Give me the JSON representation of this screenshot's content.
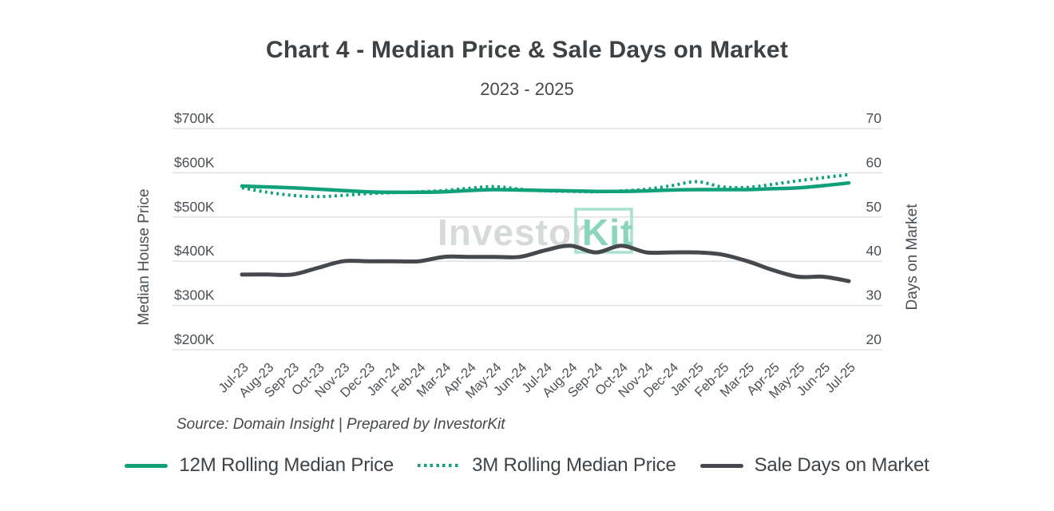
{
  "watermark": {
    "part1": "Investor",
    "part2": "Kit"
  },
  "source": {
    "text": "Source: Domain Insight | Prepared by InvestorKit"
  },
  "colors": {
    "accent_teal": "#10a17c",
    "dark_gray": "#45484c",
    "grid": "#dbdee0",
    "watermark_gray": "#d7dadb",
    "watermark_teal": "#8bd4be"
  },
  "chart_data": {
    "type": "line",
    "title": "Chart 4 - Median Price & Sale Days on Market",
    "subtitle": "2023 - 2025",
    "grid": true,
    "legend_position": "bottom",
    "categories": [
      "Jul-23",
      "Aug-23",
      "Sep-23",
      "Oct-23",
      "Nov-23",
      "Dec-23",
      "Jan-24",
      "Feb-24",
      "Mar-24",
      "Apr-24",
      "May-24",
      "Jun-24",
      "Jul-24",
      "Aug-24",
      "Sep-24",
      "Oct-24",
      "Nov-24",
      "Dec-24",
      "Jan-25",
      "Feb-25",
      "Mar-25",
      "Apr-25",
      "May-25",
      "Jun-25",
      "Jul-25"
    ],
    "left_axis": {
      "label": "Median House Price",
      "ticks": [
        "$700K",
        "$600K",
        "$500K",
        "$400K",
        "$300K",
        "$200K"
      ],
      "min": 200,
      "max": 700,
      "units": "$K"
    },
    "right_axis": {
      "label": "Days on Market",
      "ticks": [
        "70",
        "60",
        "50",
        "40",
        "30",
        "20"
      ],
      "min": 20,
      "max": 70
    },
    "series": [
      {
        "name": "12M Rolling Median Price",
        "axis": "left",
        "style": "solid",
        "color": "#10a17c",
        "units": "$K",
        "values": [
          570,
          568,
          566,
          563,
          560,
          557,
          556,
          556,
          557,
          560,
          562,
          561,
          560,
          559,
          558,
          558,
          559,
          561,
          562,
          562,
          562,
          564,
          566,
          571,
          577
        ]
      },
      {
        "name": "3M Rolling Median Price",
        "axis": "left",
        "style": "dotted",
        "color": "#10a17c",
        "units": "$K",
        "values": [
          566,
          556,
          549,
          546,
          549,
          553,
          555,
          557,
          560,
          565,
          569,
          563,
          559,
          558,
          557,
          559,
          563,
          571,
          580,
          568,
          567,
          574,
          582,
          589,
          596
        ]
      },
      {
        "name": "Sale Days on Market",
        "axis": "right",
        "style": "solid",
        "color": "#45484c",
        "units": "days",
        "values": [
          37,
          37,
          37,
          38.5,
          40,
          40,
          40,
          40,
          41,
          41,
          41,
          41,
          42.5,
          43.5,
          42,
          43.5,
          42,
          42,
          42,
          41.5,
          40,
          38,
          36.5,
          36.5,
          35.5
        ]
      }
    ]
  }
}
